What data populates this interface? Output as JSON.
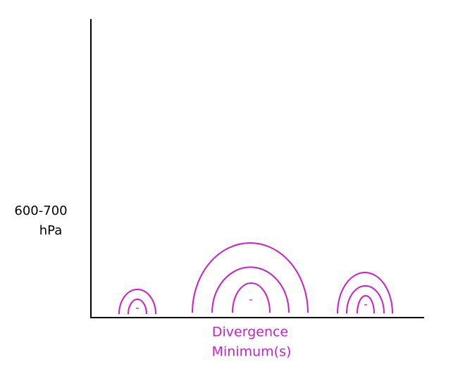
{
  "y_label": {
    "lines": [
      "600-700",
      "hPa"
    ]
  },
  "x_label": {
    "lines": [
      "Divergence",
      "Minimum(s)"
    ]
  },
  "minima": [
    {
      "label": "-"
    },
    {
      "label": "-"
    },
    {
      "label": "-"
    }
  ]
}
